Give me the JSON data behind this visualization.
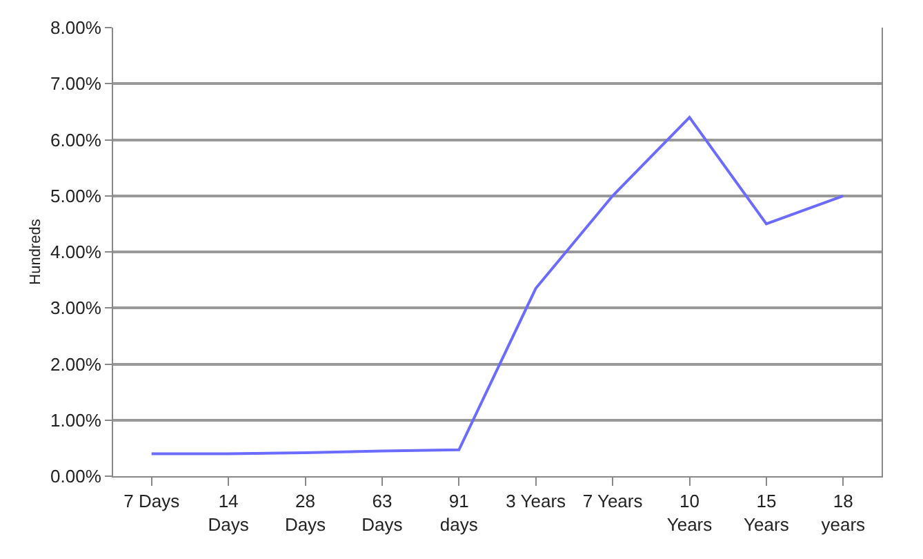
{
  "chart_data": {
    "type": "line",
    "ylabel": "Hundreds",
    "categories": [
      "7 Days",
      "14 Days",
      "28 Days",
      "63 Days",
      "91 days",
      "3 Years",
      "7 Years",
      "10 Years",
      "15 Years",
      "18 years"
    ],
    "series": [
      {
        "color": "#6b6bff",
        "values": [
          0.4,
          0.4,
          0.42,
          0.45,
          0.47,
          3.35,
          5.0,
          6.4,
          4.5,
          5.0
        ]
      }
    ],
    "ylim": [
      0,
      8
    ],
    "yticks": [
      {
        "value": 0,
        "label": "0.00%"
      },
      {
        "value": 1,
        "label": "1.00%"
      },
      {
        "value": 2,
        "label": "2.00%"
      },
      {
        "value": 3,
        "label": "3.00%"
      },
      {
        "value": 4,
        "label": "4.00%"
      },
      {
        "value": 5,
        "label": "5.00%"
      },
      {
        "value": 6,
        "label": "6.00%"
      },
      {
        "value": 7,
        "label": "7.00%"
      },
      {
        "value": 8,
        "label": "8.00%"
      }
    ],
    "grid": "y",
    "marker": "none",
    "line_style": "solid"
  }
}
